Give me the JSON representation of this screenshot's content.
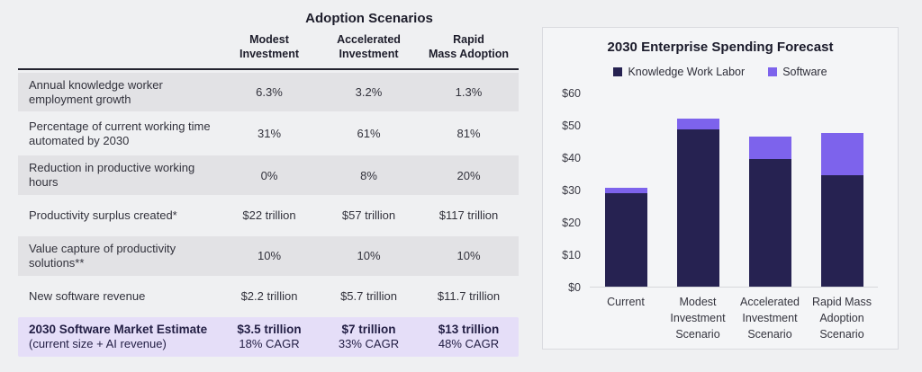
{
  "table": {
    "title": "Adoption Scenarios",
    "columns": [
      {
        "line1": "Modest",
        "line2": "Investment"
      },
      {
        "line1": "Accelerated",
        "line2": "Investment"
      },
      {
        "line1": "Rapid",
        "line2": "Mass Adoption"
      }
    ],
    "rows": [
      {
        "label": "Annual knowledge worker employment growth",
        "values": [
          "6.3%",
          "3.2%",
          "1.3%"
        ]
      },
      {
        "label": "Percentage of current working time automated by 2030",
        "values": [
          "31%",
          "61%",
          "81%"
        ]
      },
      {
        "label": "Reduction in productive working hours",
        "values": [
          "0%",
          "8%",
          "20%"
        ]
      },
      {
        "label": "Productivity surplus created*",
        "values": [
          "$22 trillion",
          "$57 trillion",
          "$117 trillion"
        ]
      },
      {
        "label": "Value capture of productivity solutions**",
        "values": [
          "10%",
          "10%",
          "10%"
        ]
      },
      {
        "label": "New software revenue",
        "values": [
          "$2.2 trillion",
          "$5.7 trillion",
          "$11.7 trillion"
        ]
      }
    ],
    "highlight_row": {
      "label_bold": "2030 Software Market Estimate",
      "label_sub": "(current size + AI revenue)",
      "values": [
        {
          "main": "$3.5 trillion",
          "sub": "18% CAGR"
        },
        {
          "main": "$7 trillion",
          "sub": "33% CAGR"
        },
        {
          "main": "$13 trillion",
          "sub": "48% CAGR"
        }
      ]
    }
  },
  "chart_data": {
    "type": "bar",
    "stacked": true,
    "title": "2030 Enterprise Spending Forecast",
    "categories": [
      "Current",
      "Modest Investment Scenario",
      "Accelerated Investment Scenario",
      "Rapid Mass Adoption Scenario"
    ],
    "series": [
      {
        "name": "Knowledge Work Labor",
        "color": "#262251",
        "values": [
          29,
          48.5,
          39.5,
          34.5
        ]
      },
      {
        "name": "Software",
        "color": "#7d63ec",
        "values": [
          1.5,
          3.5,
          7,
          13
        ]
      }
    ],
    "totals": [
      30.5,
      52,
      46.5,
      47.5
    ],
    "xlabel": "",
    "ylabel": "",
    "yticks": [
      "$0",
      "$10",
      "$20",
      "$30",
      "$40",
      "$50",
      "$60"
    ],
    "ytick_values": [
      0,
      10,
      20,
      30,
      40,
      50,
      60
    ],
    "ylim": [
      0,
      60
    ],
    "grid": false,
    "legend_position": "top",
    "units": "US$ trillions"
  },
  "colors": {
    "page_bg": "#eff0f2",
    "row_shaded": "#e2e2e5",
    "row_highlight": "#e5def8",
    "header_rule": "#23232f",
    "panel_bg": "#f4f5f7",
    "panel_border": "#dadbe0",
    "labor_bar": "#262251",
    "software_bar": "#7d63ec"
  }
}
